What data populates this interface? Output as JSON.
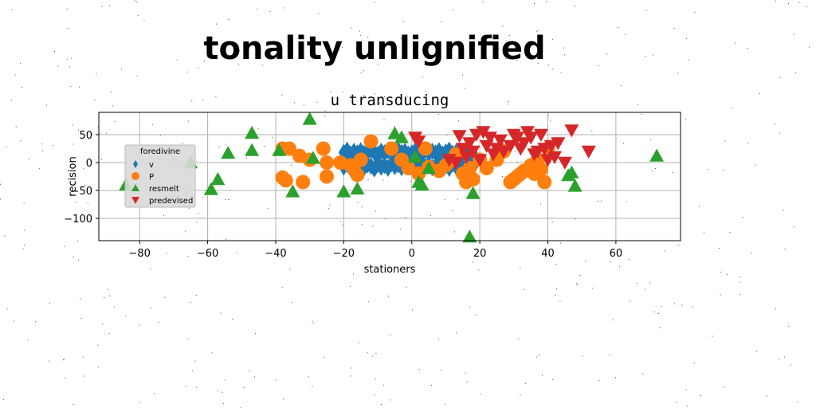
{
  "page_title": "tonality unlignified",
  "chart_data": {
    "type": "scatter",
    "title": "u transducing",
    "xlabel": "stationers",
    "ylabel": "recision",
    "xlim": [
      -92,
      79
    ],
    "ylim": [
      -140,
      90
    ],
    "xticks": [
      -80,
      -60,
      -40,
      -20,
      0,
      20,
      40,
      60
    ],
    "yticks": [
      -100,
      -50,
      0,
      50
    ],
    "grid": true,
    "legend": {
      "title": "foredivine",
      "placement": "left"
    },
    "series": [
      {
        "name": "v",
        "marker": "diamond",
        "color": "#1f77b4",
        "x": [
          -20,
          -19,
          -18,
          -17,
          -16,
          -15,
          -14,
          -13,
          -12,
          -11,
          -10,
          -9,
          -8,
          -7,
          -6,
          -5,
          -4,
          -3,
          -2,
          -1,
          0,
          1,
          2,
          3,
          4,
          5,
          6,
          7,
          8,
          9,
          10,
          11,
          12,
          13,
          14,
          15,
          16,
          17,
          18,
          -20,
          -19,
          -18,
          -17,
          -16,
          -15,
          -14,
          -13,
          -12,
          -11,
          -10,
          -9,
          -8,
          -7,
          -6,
          -5,
          -4,
          -3,
          -2,
          -1,
          0,
          1,
          2,
          3,
          4,
          5,
          6,
          7,
          8,
          9,
          10,
          11,
          12,
          13,
          14,
          15,
          16,
          17,
          18
        ],
        "y": [
          18,
          22,
          15,
          20,
          17,
          21,
          16,
          19,
          22,
          18,
          15,
          20,
          17,
          21,
          19,
          16,
          22,
          18,
          20,
          15,
          17,
          21,
          19,
          16,
          22,
          18,
          20,
          17,
          21,
          15,
          19,
          22,
          16,
          18,
          20,
          17,
          21,
          19,
          16,
          -8,
          -3,
          -10,
          -5,
          -7,
          -2,
          -9,
          -4,
          -6,
          -11,
          -3,
          -8,
          -5,
          -10,
          -2,
          -7,
          -4,
          -9,
          -6,
          -3,
          -8,
          -5,
          -10,
          -2,
          -7,
          -4,
          -9,
          -6,
          -3,
          -8,
          -5,
          -10,
          -2,
          -7,
          -4,
          -9,
          -6,
          -3,
          -8
        ]
      },
      {
        "name": "P",
        "marker": "circle",
        "color": "#ff7f0e",
        "x": [
          -38,
          -36,
          -38,
          -37,
          -33,
          -32,
          -30,
          -26,
          -25,
          -25,
          -21,
          -18,
          -17,
          -16,
          -15,
          -12,
          -6,
          -3,
          -1,
          2,
          4,
          5,
          8,
          10,
          12,
          13,
          15,
          16,
          17,
          18,
          20,
          22,
          25,
          27,
          29,
          30,
          31,
          32,
          33,
          35,
          36,
          37,
          38,
          39,
          40
        ],
        "y": [
          25,
          25,
          -27,
          -32,
          12,
          -35,
          5,
          25,
          0,
          -25,
          0,
          -5,
          -12,
          -22,
          5,
          38,
          25,
          5,
          -10,
          -20,
          25,
          -8,
          -15,
          -5,
          5,
          15,
          -20,
          -35,
          -10,
          -30,
          5,
          -10,
          5,
          20,
          -35,
          -30,
          -25,
          -20,
          -15,
          -5,
          -20,
          5,
          -12,
          -35,
          25
        ]
      },
      {
        "name": "resmelt",
        "marker": "triangle-up",
        "color": "#2ca02c",
        "x": [
          -84,
          -65,
          -59,
          -57,
          -54,
          -47,
          -47,
          -39,
          -35,
          -30,
          -29,
          -20,
          -16,
          -5,
          -3,
          1,
          2,
          3,
          5,
          17,
          18,
          46,
          47,
          48,
          72
        ],
        "y": [
          -40,
          0,
          -48,
          -30,
          17,
          53,
          22,
          22,
          -52,
          78,
          8,
          -52,
          -47,
          52,
          45,
          10,
          -35,
          -40,
          -10,
          -133,
          -55,
          -23,
          -18,
          -42,
          12
        ]
      },
      {
        "name": "predevised",
        "marker": "triangle-down",
        "color": "#d62728",
        "x": [
          1,
          2,
          11,
          13,
          14,
          15,
          16,
          17,
          18,
          19,
          20,
          21,
          22,
          23,
          24,
          25,
          26,
          27,
          29,
          30,
          31,
          32,
          33,
          34,
          35,
          36,
          37,
          38,
          39,
          40,
          41,
          42,
          43,
          45,
          47,
          52
        ],
        "y": [
          45,
          38,
          5,
          0,
          48,
          25,
          10,
          35,
          20,
          50,
          5,
          55,
          30,
          45,
          15,
          25,
          40,
          20,
          30,
          50,
          45,
          25,
          35,
          55,
          45,
          15,
          20,
          50,
          25,
          5,
          30,
          10,
          35,
          0,
          58,
          20
        ]
      }
    ]
  }
}
